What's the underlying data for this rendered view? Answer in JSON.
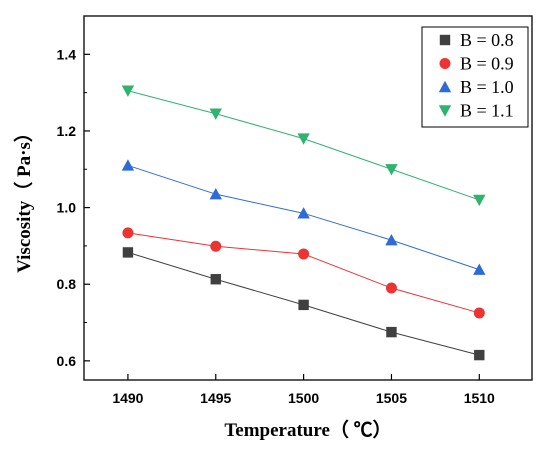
{
  "chart_data": {
    "type": "line",
    "xlabel": "Temperature（ ℃）",
    "ylabel": "Viscosity（ Pa·s）",
    "x": [
      1490,
      1495,
      1500,
      1505,
      1510
    ],
    "x_ticks": [
      "1490",
      "1495",
      "1500",
      "1505",
      "1510"
    ],
    "xlim": [
      1487.5,
      1513
    ],
    "ylim": [
      0.55,
      1.5
    ],
    "y_ticks": [
      "0.6",
      "0.8",
      "1.0",
      "1.2",
      "1.4"
    ],
    "grid": false,
    "legend_position": "top-right",
    "series": [
      {
        "name": "B = 0.8",
        "color": "#404040",
        "marker": "square",
        "values": [
          0.883,
          0.813,
          0.746,
          0.675,
          0.615
        ]
      },
      {
        "name": "B = 0.9",
        "color": "#ee3333",
        "marker": "circle",
        "values": [
          0.934,
          0.899,
          0.879,
          0.79,
          0.725
        ]
      },
      {
        "name": "B = 1.0",
        "color": "#2f6bd8",
        "marker": "triangle-up",
        "values": [
          1.11,
          1.035,
          0.985,
          0.915,
          0.838
        ]
      },
      {
        "name": "B = 1.1",
        "color": "#2fb36f",
        "marker": "triangle-down",
        "values": [
          1.305,
          1.245,
          1.18,
          1.1,
          1.02
        ]
      }
    ]
  }
}
